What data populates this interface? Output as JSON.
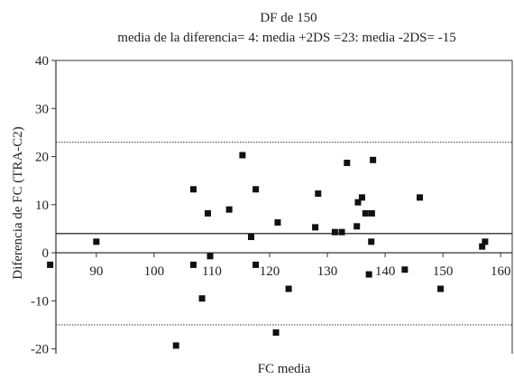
{
  "chart_data": {
    "type": "scatter",
    "title": "DF de 150",
    "subtitle": "media de la diferencia= 4: media +2DS =23: media -2DS= -15",
    "xlabel": "FC media",
    "ylabel": "Diferencia de FC (TRA-C2)",
    "xlim": [
      83,
      162
    ],
    "ylim": [
      -21,
      40
    ],
    "xticks": [
      90,
      100,
      110,
      120,
      130,
      140,
      150,
      160
    ],
    "yticks": [
      -20,
      -10,
      0,
      10,
      20,
      30,
      40
    ],
    "grid": false,
    "reference_lines": [
      {
        "name": "media de la diferencia",
        "y": 4,
        "style": "solid"
      },
      {
        "name": "media +2DS",
        "y": 23,
        "style": "dotted"
      },
      {
        "name": "media -2DS",
        "y": -15,
        "style": "dotted"
      }
    ],
    "points": [
      {
        "x": 82,
        "y": -2.5
      },
      {
        "x": 90,
        "y": 2.3
      },
      {
        "x": 103.8,
        "y": -19.3
      },
      {
        "x": 106.8,
        "y": 13.2
      },
      {
        "x": 106.8,
        "y": -2.5
      },
      {
        "x": 108.3,
        "y": -9.5
      },
      {
        "x": 109.3,
        "y": 8.2
      },
      {
        "x": 109.7,
        "y": -0.7
      },
      {
        "x": 113,
        "y": 9.0
      },
      {
        "x": 115.3,
        "y": 20.3
      },
      {
        "x": 116.8,
        "y": 3.3
      },
      {
        "x": 117.6,
        "y": 13.2
      },
      {
        "x": 117.6,
        "y": -2.5
      },
      {
        "x": 121.1,
        "y": -16.6
      },
      {
        "x": 121.4,
        "y": 6.3
      },
      {
        "x": 123.3,
        "y": -7.5
      },
      {
        "x": 127.9,
        "y": 5.3
      },
      {
        "x": 128.4,
        "y": 12.3
      },
      {
        "x": 131.3,
        "y": 4.3
      },
      {
        "x": 132.5,
        "y": 4.3
      },
      {
        "x": 133.4,
        "y": 18.7
      },
      {
        "x": 135.1,
        "y": 5.5
      },
      {
        "x": 135.3,
        "y": 10.5
      },
      {
        "x": 136,
        "y": 11.5
      },
      {
        "x": 136.6,
        "y": 8.2
      },
      {
        "x": 137.2,
        "y": -4.5
      },
      {
        "x": 137.6,
        "y": 2.3
      },
      {
        "x": 137.7,
        "y": 8.2
      },
      {
        "x": 137.9,
        "y": 19.3
      },
      {
        "x": 143.4,
        "y": -3.5
      },
      {
        "x": 146,
        "y": 11.5
      },
      {
        "x": 149.6,
        "y": -7.5
      },
      {
        "x": 156.8,
        "y": 1.3
      },
      {
        "x": 157.3,
        "y": 2.3
      }
    ]
  }
}
